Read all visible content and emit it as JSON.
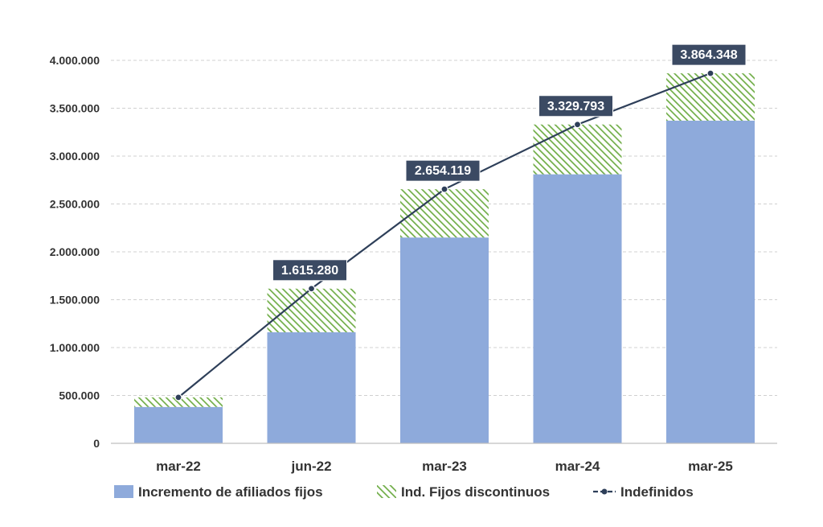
{
  "chart_data": {
    "type": "bar",
    "stacked": true,
    "categories": [
      "mar-22",
      "jun-22",
      "mar-23",
      "mar-24",
      "mar-25"
    ],
    "series": [
      {
        "name": "Incremento de afiliados fijos",
        "kind": "bar",
        "pattern": "solid",
        "color": "#8eaadb",
        "values": [
          380000,
          1160000,
          2150000,
          2810000,
          3370000
        ]
      },
      {
        "name": "Ind. Fijos discontinuos",
        "kind": "bar",
        "pattern": "hatch",
        "color": "#70ad47",
        "values": [
          100000,
          455280,
          504119,
          519793,
          494348
        ]
      },
      {
        "name": "Indefinidos",
        "kind": "line",
        "color": "#2e3f59",
        "values": [
          480000,
          1615280,
          2654119,
          3329793,
          3864348
        ]
      }
    ],
    "data_labels": [
      {
        "category_index": 1,
        "text": "1.615.280"
      },
      {
        "category_index": 2,
        "text": "2.654.119"
      },
      {
        "category_index": 3,
        "text": "3.329.793"
      },
      {
        "category_index": 4,
        "text": "3.864.348"
      }
    ],
    "ylim": [
      0,
      4000000
    ],
    "y_ticks": [
      {
        "value": 0,
        "label": "0"
      },
      {
        "value": 500000,
        "label": "500.000"
      },
      {
        "value": 1000000,
        "label": "1.000.000"
      },
      {
        "value": 1500000,
        "label": "1.500.000"
      },
      {
        "value": 2000000,
        "label": "2.000.000"
      },
      {
        "value": 2500000,
        "label": "2.500.000"
      },
      {
        "value": 3000000,
        "label": "3.000.000"
      },
      {
        "value": 3500000,
        "label": "3.500.000"
      },
      {
        "value": 4000000,
        "label": "4.000.000"
      }
    ],
    "grid": true,
    "legend_position": "bottom",
    "title": "",
    "xlabel": "",
    "ylabel": ""
  }
}
